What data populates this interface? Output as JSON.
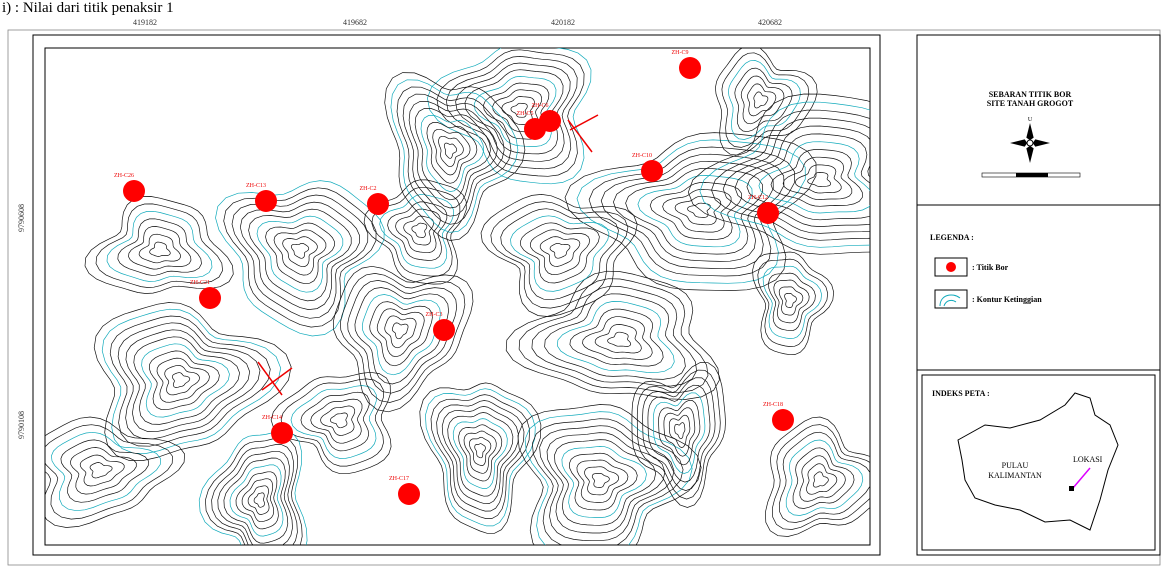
{
  "caption": "i)      : Nilai dari titik penaksir 1",
  "grid_labels": {
    "top": [
      "419182",
      "419682",
      "420182",
      "420682"
    ],
    "left": [
      "9790608",
      "9790108"
    ]
  },
  "boreholes": [
    "ZH-C9",
    "ZH-C6",
    "ZH-C5",
    "ZH-C10",
    "ZH-C26",
    "ZH-C13",
    "ZH-C2",
    "ZH-C12",
    "ZH-C21",
    "ZH-C3",
    "ZH-C18",
    "ZH-C14",
    "ZH-C17"
  ],
  "panel": {
    "title": "SEBARAN TITIK BOR",
    "subtitle": "SITE TANAH GROGOT",
    "north": "U",
    "legend_title": "LEGENDA :",
    "legend": [
      ": Titik Bor",
      ": Kontur Ketinggian"
    ],
    "index_title": "INDEKS PETA :",
    "island": [
      "PULAU",
      "KALIMANTAN"
    ],
    "location": "LOKASI"
  }
}
